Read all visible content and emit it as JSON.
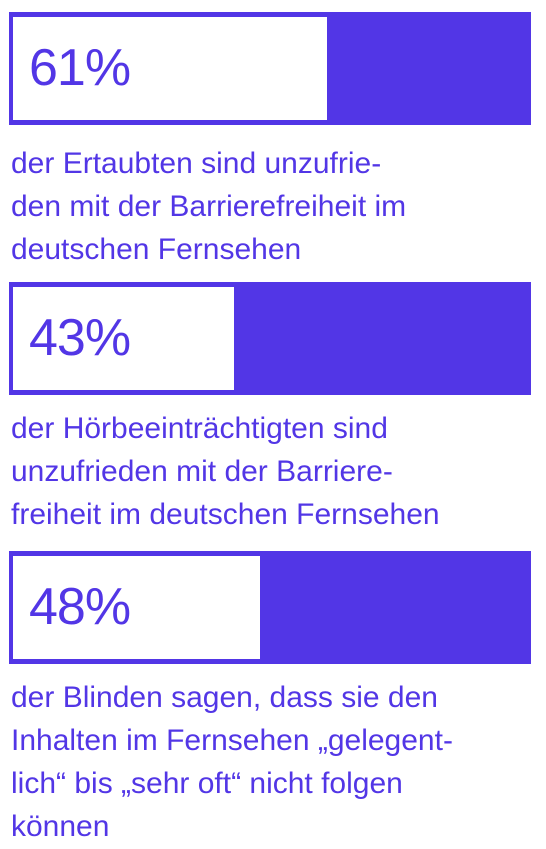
{
  "chart_data": {
    "type": "bar",
    "orientation": "horizontal",
    "scale_max_percent": 100,
    "colors": {
      "accent": "#5236e6",
      "fill": "#ffffff"
    },
    "items": [
      {
        "value": 61,
        "value_label": "61%",
        "caption": "der Ertaubten sind unzufrie-\nden mit der Barrierefreiheit im\ndeutschen Fernsehen"
      },
      {
        "value": 43,
        "value_label": "43%",
        "caption": "der Hörbeeinträchtigten sind\nunzufrieden mit der Barriere-\nfreiheit im deutschen Fernsehen"
      },
      {
        "value": 48,
        "value_label": "48%",
        "caption": "der Blinden sagen, dass sie den\nInhalten im Fernsehen „gelegent-\nlich“ bis „sehr oft“ nicht folgen\nkönnen"
      }
    ]
  }
}
